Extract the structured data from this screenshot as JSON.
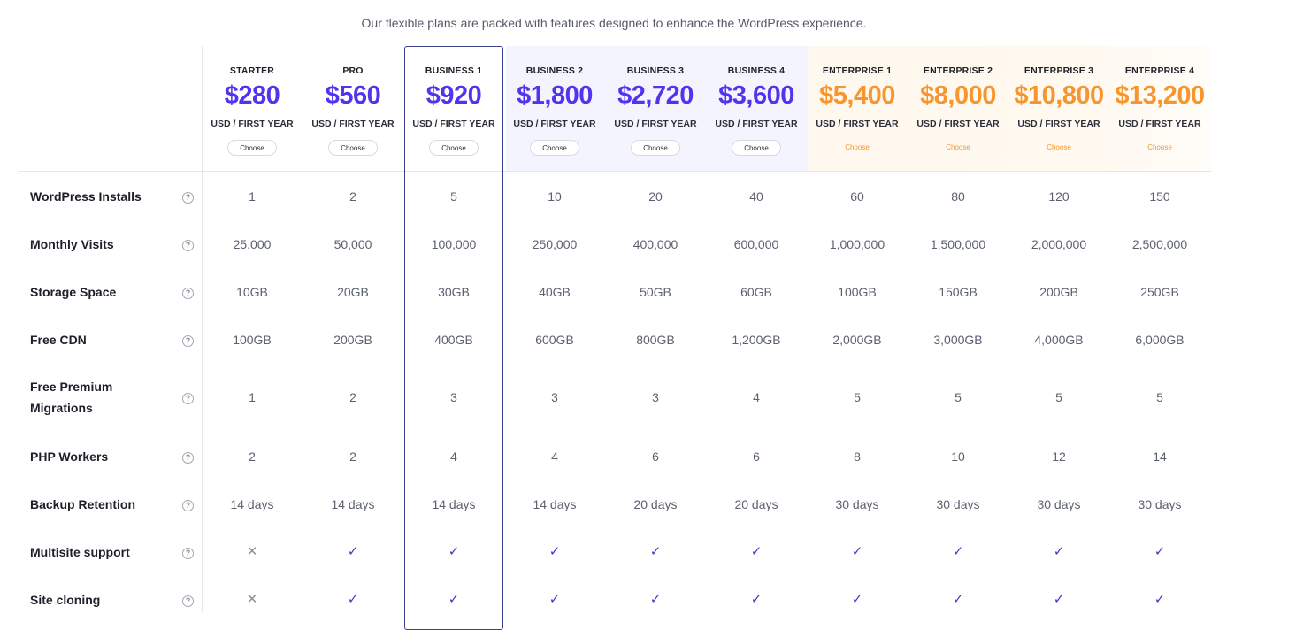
{
  "tagline": "Our flexible plans are packed with features designed to enhance the WordPress experience.",
  "colors": {
    "accent": "#5333ed",
    "enterprise": "#f7962f",
    "highlight_border": "#3b3f8f"
  },
  "plans": [
    {
      "id": "starter",
      "name": "STARTER",
      "price": "$280",
      "period": "USD / FIRST YEAR",
      "button": "Choose",
      "tier": "standard"
    },
    {
      "id": "pro",
      "name": "PRO",
      "price": "$560",
      "period": "USD / FIRST YEAR",
      "button": "Choose",
      "tier": "standard"
    },
    {
      "id": "business-1",
      "name": "BUSINESS 1",
      "price": "$920",
      "period": "USD / FIRST YEAR",
      "button": "Choose",
      "tier": "standard",
      "highlighted": true
    },
    {
      "id": "business-2",
      "name": "BUSINESS 2",
      "price": "$1,800",
      "period": "USD / FIRST YEAR",
      "button": "Choose",
      "tier": "business"
    },
    {
      "id": "business-3",
      "name": "BUSINESS 3",
      "price": "$2,720",
      "period": "USD / FIRST YEAR",
      "button": "Choose",
      "tier": "business"
    },
    {
      "id": "business-4",
      "name": "BUSINESS 4",
      "price": "$3,600",
      "period": "USD / FIRST YEAR",
      "button": "Choose",
      "tier": "business"
    },
    {
      "id": "enterprise-1",
      "name": "ENTERPRISE 1",
      "price": "$5,400",
      "period": "USD / FIRST YEAR",
      "button": "Choose",
      "tier": "enterprise"
    },
    {
      "id": "enterprise-2",
      "name": "ENTERPRISE 2",
      "price": "$8,000",
      "period": "USD / FIRST YEAR",
      "button": "Choose",
      "tier": "enterprise"
    },
    {
      "id": "enterprise-3",
      "name": "ENTERPRISE 3",
      "price": "$10,800",
      "period": "USD / FIRST YEAR",
      "button": "Choose",
      "tier": "enterprise"
    },
    {
      "id": "enterprise-4",
      "name": "ENTERPRISE 4",
      "price": "$13,200",
      "period": "USD / FIRST YEAR",
      "button": "Choose",
      "tier": "enterprise"
    }
  ],
  "help_icon": "question-circle-icon",
  "features": [
    {
      "id": "wordpress-installs",
      "label": "WordPress Installs",
      "values": [
        "1",
        "2",
        "5",
        "10",
        "20",
        "40",
        "60",
        "80",
        "120",
        "150"
      ]
    },
    {
      "id": "monthly-visits",
      "label": "Monthly Visits",
      "values": [
        "25,000",
        "50,000",
        "100,000",
        "250,000",
        "400,000",
        "600,000",
        "1,000,000",
        "1,500,000",
        "2,000,000",
        "2,500,000"
      ]
    },
    {
      "id": "storage-space",
      "label": "Storage Space",
      "values": [
        "10GB",
        "20GB",
        "30GB",
        "40GB",
        "50GB",
        "60GB",
        "100GB",
        "150GB",
        "200GB",
        "250GB"
      ]
    },
    {
      "id": "free-cdn",
      "label": "Free CDN",
      "values": [
        "100GB",
        "200GB",
        "400GB",
        "600GB",
        "800GB",
        "1,200GB",
        "2,000GB",
        "3,000GB",
        "4,000GB",
        "6,000GB"
      ]
    },
    {
      "id": "free-premium-migrations",
      "label": "Free Premium Migrations",
      "values": [
        "1",
        "2",
        "3",
        "3",
        "3",
        "4",
        "5",
        "5",
        "5",
        "5"
      ]
    },
    {
      "id": "php-workers",
      "label": "PHP Workers",
      "values": [
        "2",
        "2",
        "4",
        "4",
        "6",
        "6",
        "8",
        "10",
        "12",
        "14"
      ]
    },
    {
      "id": "backup-retention",
      "label": "Backup Retention",
      "values": [
        "14 days",
        "14 days",
        "14 days",
        "14 days",
        "20 days",
        "20 days",
        "30 days",
        "30 days",
        "30 days",
        "30 days"
      ]
    },
    {
      "id": "multisite-support",
      "label": "Multisite support",
      "values": [
        "cross",
        "check",
        "check",
        "check",
        "check",
        "check",
        "check",
        "check",
        "check",
        "check"
      ]
    },
    {
      "id": "site-cloning",
      "label": "Site cloning",
      "values": [
        "cross",
        "check",
        "check",
        "check",
        "check",
        "check",
        "check",
        "check",
        "check",
        "check"
      ]
    }
  ]
}
